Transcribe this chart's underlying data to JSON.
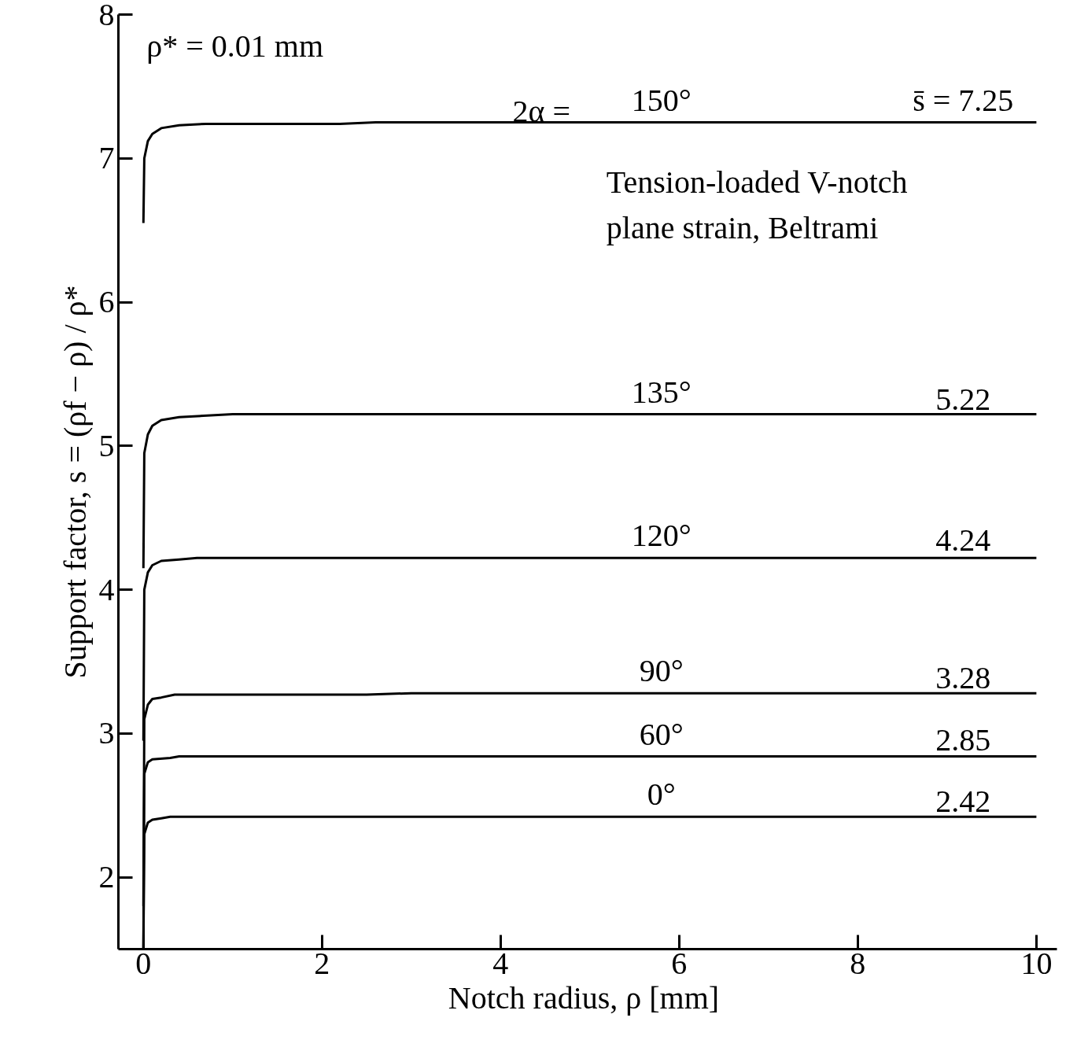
{
  "chart_data": {
    "type": "line",
    "xlabel": "Notch radius, ρ  [mm]",
    "ylabel": "Support factor, s = (ρf − ρ) / ρ*",
    "xlim": [
      -0.28,
      10.23
    ],
    "ylim": [
      1.5,
      8
    ],
    "xticks": [
      0,
      2,
      4,
      6,
      8,
      10
    ],
    "yticks": [
      2,
      3,
      4,
      5,
      6,
      7,
      8
    ],
    "grid": false,
    "legend": false,
    "marker": "none",
    "line_style": "solid",
    "series": [
      {
        "name": "150°",
        "color": "#000000",
        "x": [
          0,
          0.01,
          0.05,
          0.1,
          0.2,
          0.4,
          0.7,
          2.2,
          2.6,
          10
        ],
        "values": [
          6.55,
          7.0,
          7.12,
          7.17,
          7.21,
          7.23,
          7.24,
          7.24,
          7.25,
          7.25
        ]
      },
      {
        "name": "135°",
        "color": "#000000",
        "x": [
          0,
          0.01,
          0.05,
          0.1,
          0.2,
          0.4,
          1.0,
          10
        ],
        "values": [
          4.15,
          4.95,
          5.08,
          5.14,
          5.18,
          5.2,
          5.22,
          5.22
        ]
      },
      {
        "name": "120°",
        "color": "#000000",
        "x": [
          0,
          0.01,
          0.05,
          0.1,
          0.2,
          0.4,
          0.6,
          10
        ],
        "values": [
          2.95,
          4.0,
          4.12,
          4.17,
          4.2,
          4.21,
          4.22,
          4.22
        ]
      },
      {
        "name": "90°",
        "color": "#000000",
        "x": [
          0,
          0.01,
          0.05,
          0.1,
          0.2,
          0.35,
          2.5,
          3.0,
          10
        ],
        "values": [
          1.8,
          3.1,
          3.2,
          3.24,
          3.25,
          3.27,
          3.27,
          3.28,
          3.28
        ]
      },
      {
        "name": "60°",
        "color": "#000000",
        "x": [
          0,
          0.01,
          0.05,
          0.1,
          0.3,
          0.4,
          10
        ],
        "values": [
          1.5,
          2.72,
          2.8,
          2.82,
          2.83,
          2.84,
          2.84
        ]
      },
      {
        "name": "0°",
        "color": "#000000",
        "x": [
          0,
          0.01,
          0.05,
          0.1,
          0.2,
          0.3,
          10
        ],
        "values": [
          1.5,
          2.3,
          2.38,
          2.4,
          2.41,
          2.42,
          2.42
        ]
      }
    ],
    "annotations": [
      "ρ* = 0.01 mm",
      "Tension-loaded V-notch\nplane strain, Beltrami",
      "2α  =",
      {
        "text": "s̄ = 7.25",
        "y": 7.25
      },
      {
        "text": "5.22",
        "y": 5.22
      },
      {
        "text": "4.24",
        "y": 4.24
      },
      {
        "text": "3.28",
        "y": 3.28
      },
      {
        "text": "2.85",
        "y": 2.85
      },
      {
        "text": "2.42",
        "y": 2.42
      }
    ]
  }
}
